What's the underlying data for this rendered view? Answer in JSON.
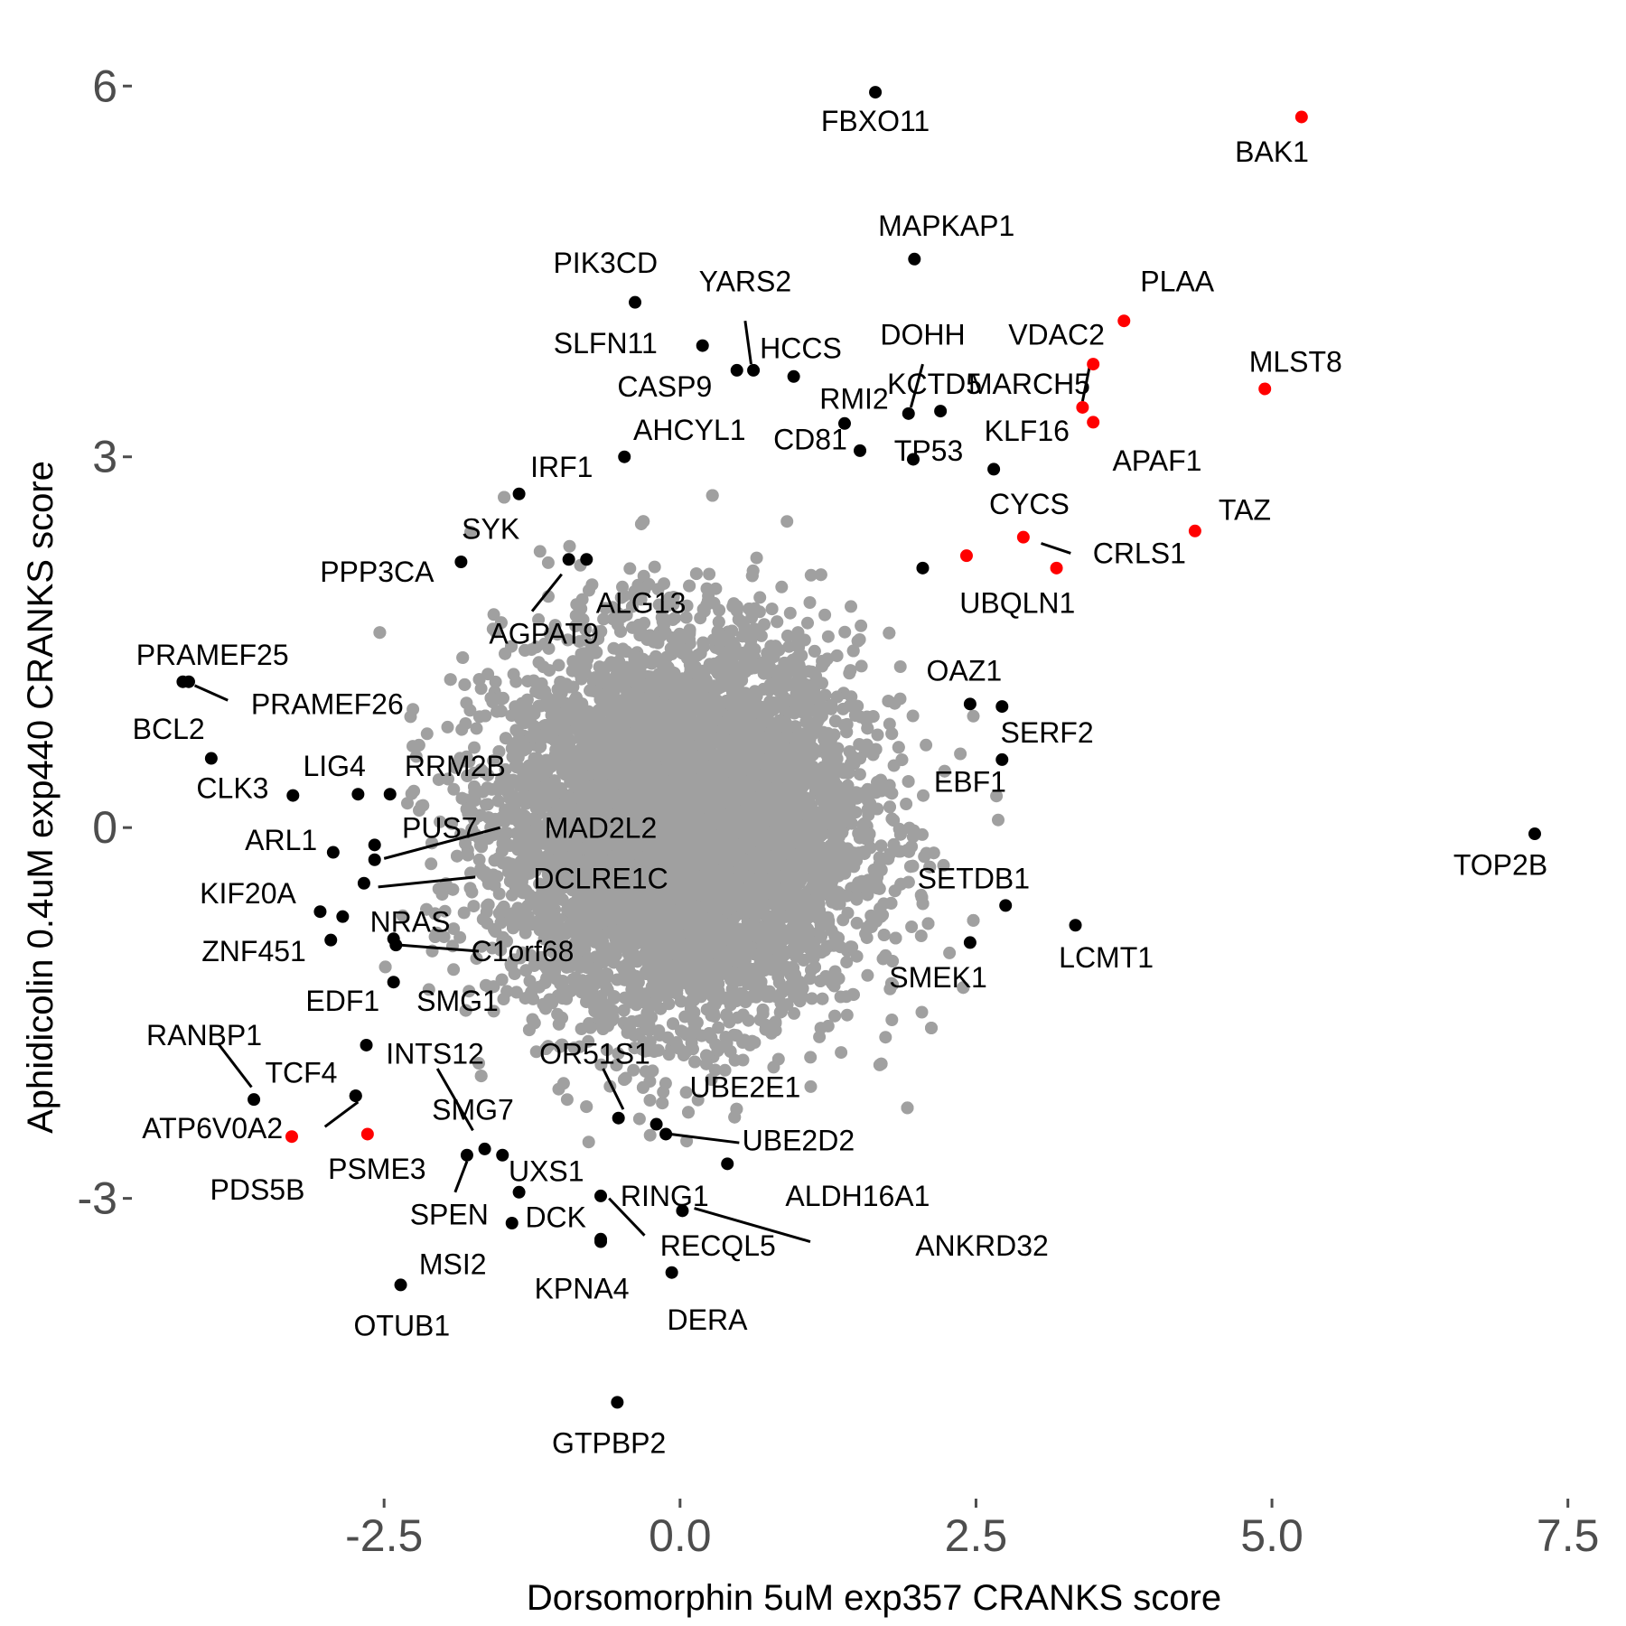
{
  "chart_data": {
    "type": "scatter",
    "title": "",
    "xlabel": "Dorsomorphin 5uM exp357 CRANKS score",
    "ylabel": "Aphidicolin 0.4uM exp440 CRANKS score",
    "xlim": [
      -4.6,
      7.8
    ],
    "ylim": [
      -5.4,
      6.55
    ],
    "xticks": [
      -2.5,
      0.0,
      2.5,
      5.0,
      7.5
    ],
    "xtick_labels": [
      "-2.5",
      "0.0",
      "2.5",
      "5.0",
      "7.5"
    ],
    "yticks": [
      -3,
      0,
      3,
      6
    ],
    "ytick_labels": [
      "-3",
      "0",
      "3",
      "6"
    ],
    "grid": false,
    "colors": {
      "background": "#ffffff",
      "labeled": "#000000",
      "highlighted": "#ff0000",
      "background_points": "#a0a0a0",
      "tick": "#4d4d4d"
    },
    "background_cloud": {
      "color": "#a0a0a0",
      "center": [
        0.0,
        0.0
      ],
      "sd": [
        0.75,
        0.75
      ],
      "count": 9000
    },
    "series": [
      {
        "color": "#000000",
        "points": [
          {
            "label": "FBXO11",
            "x": 1.65,
            "y": 5.95
          },
          {
            "label": "MAPKAP1",
            "x": 1.98,
            "y": 4.6
          },
          {
            "label": "PIK3CD",
            "x": -0.38,
            "y": 4.25
          },
          {
            "label": "SLFN11",
            "x": 0.19,
            "y": 3.9
          },
          {
            "label": "YARS2",
            "x": 0.62,
            "y": 3.7
          },
          {
            "label": "HCCS",
            "x": 0.96,
            "y": 3.65
          },
          {
            "label": "CASP9",
            "x": 0.48,
            "y": 3.7
          },
          {
            "label": "DOHH",
            "x": 1.93,
            "y": 3.35
          },
          {
            "label": "KCTD5",
            "x": 2.2,
            "y": 3.37
          },
          {
            "label": "RMI2",
            "x": 1.39,
            "y": 3.27
          },
          {
            "label": "CD81",
            "x": 1.52,
            "y": 3.05
          },
          {
            "label": "TP53",
            "x": 1.97,
            "y": 2.98
          },
          {
            "label": "AHCYL1",
            "x": -0.47,
            "y": 3.0
          },
          {
            "label": "KLF16",
            "x": 2.65,
            "y": 2.9
          },
          {
            "label": "IRF1",
            "x": -1.36,
            "y": 2.7
          },
          {
            "label": "SYK",
            "x": -1.85,
            "y": 2.15
          },
          {
            "label": "ALG13",
            "x": -0.94,
            "y": 2.17
          },
          {
            "label": "AGPAT9",
            "x": -0.79,
            "y": 2.17
          },
          {
            "label": "UBQLN1",
            "x": 2.05,
            "y": 2.1
          },
          {
            "label": "PRAMEF25",
            "x": -4.2,
            "y": 1.18
          },
          {
            "label": "PRAMEF26",
            "x": -4.15,
            "y": 1.18
          },
          {
            "label": "OAZ1",
            "x": 2.45,
            "y": 1.0
          },
          {
            "label": "SERF2",
            "x": 2.72,
            "y": 0.98
          },
          {
            "label": "BCL2",
            "x": -3.96,
            "y": 0.56
          },
          {
            "label": "EBF1",
            "x": 2.72,
            "y": 0.55
          },
          {
            "label": "CLK3",
            "x": -3.27,
            "y": 0.26
          },
          {
            "label": "LIG4",
            "x": -2.72,
            "y": 0.27
          },
          {
            "label": "RRM2B",
            "x": -2.45,
            "y": 0.27
          },
          {
            "label": "TOP2B",
            "x": 7.22,
            "y": -0.05
          },
          {
            "label": "ARL1",
            "x": -2.93,
            "y": -0.2
          },
          {
            "label": "PUS7",
            "x": -2.58,
            "y": -0.14
          },
          {
            "label": "MAD2L2",
            "x": -2.58,
            "y": -0.26
          },
          {
            "label": "DCLRE1C",
            "x": -2.67,
            "y": -0.45
          },
          {
            "label": "KIF20A",
            "x": -3.04,
            "y": -0.68
          },
          {
            "label": "NRAS",
            "x": -2.85,
            "y": -0.72
          },
          {
            "label": "SETDB1",
            "x": 2.75,
            "y": -0.63
          },
          {
            "label": "LCMT1",
            "x": 3.34,
            "y": -0.79
          },
          {
            "label": "ZNF451",
            "x": -2.95,
            "y": -0.91
          },
          {
            "label": "C1orf68",
            "x": -2.4,
            "y": -0.95
          },
          {
            "label": "SMEK1",
            "x": 2.45,
            "y": -0.93
          },
          {
            "label": "EDF1",
            "x": -2.42,
            "y": -1.25
          },
          {
            "label": "SMG1",
            "x": -2.42,
            "y": -0.9
          },
          {
            "label": "RANBP1",
            "x": -3.6,
            "y": -2.2
          },
          {
            "label": "TCF4",
            "x": -2.65,
            "y": -1.76
          },
          {
            "label": "INTS12",
            "x": -2.74,
            "y": -2.17
          },
          {
            "label": "ATP6V0A2",
            "x": -2.74,
            "y": -2.17
          },
          {
            "label": "SMG7",
            "x": -1.65,
            "y": -2.6
          },
          {
            "label": "SPEN",
            "x": -1.8,
            "y": -2.65
          },
          {
            "label": "OR51S1",
            "x": -0.52,
            "y": -2.35
          },
          {
            "label": "UBE2E1",
            "x": -0.2,
            "y": -2.4
          },
          {
            "label": "UBE2D2",
            "x": -0.12,
            "y": -2.48
          },
          {
            "label": "UXS1",
            "x": -1.5,
            "y": -2.65
          },
          {
            "label": "ALDH16A1",
            "x": 0.4,
            "y": -2.72
          },
          {
            "label": "DCK",
            "x": -1.36,
            "y": -2.95
          },
          {
            "label": "RING1",
            "x": -0.67,
            "y": -2.98
          },
          {
            "label": "ANKRD32",
            "x": 0.02,
            "y": -3.1
          },
          {
            "label": "RECQL5",
            "x": -0.67,
            "y": -3.35
          },
          {
            "label": "MSI2",
            "x": -1.42,
            "y": -3.2
          },
          {
            "label": "OTUB1",
            "x": -2.36,
            "y": -3.7
          },
          {
            "label": "KPNA4",
            "x": -0.67,
            "y": -3.33
          },
          {
            "label": "DERA",
            "x": -0.07,
            "y": -3.6
          },
          {
            "label": "GTPBP2",
            "x": -0.53,
            "y": -4.65
          }
        ]
      },
      {
        "color": "#ff0000",
        "points": [
          {
            "label": "BAK1",
            "x": 5.25,
            "y": 5.75
          },
          {
            "label": "PLAA",
            "x": 3.75,
            "y": 4.1
          },
          {
            "label": "VDAC2",
            "x": 3.49,
            "y": 3.75
          },
          {
            "label": "MLST8",
            "x": 4.94,
            "y": 3.55
          },
          {
            "label": "MARCH5",
            "x": 3.4,
            "y": 3.4
          },
          {
            "label": "APAF1",
            "x": 3.49,
            "y": 3.28
          },
          {
            "label": "TAZ",
            "x": 4.35,
            "y": 2.4
          },
          {
            "label": "CYCS",
            "x": 2.9,
            "y": 2.35
          },
          {
            "label": "CRLS1",
            "x": 3.18,
            "y": 2.1
          },
          {
            "label": "",
            "x": 2.42,
            "y": 2.2
          },
          {
            "label": "PDS5B",
            "x": -3.28,
            "y": -2.5
          },
          {
            "label": "PSME3",
            "x": -2.64,
            "y": -2.48
          }
        ]
      }
    ],
    "labels": [
      {
        "text": "FBXO11",
        "x": 1.65,
        "y": 5.7
      },
      {
        "text": "BAK1",
        "x": 5.0,
        "y": 5.45
      },
      {
        "text": "MAPKAP1",
        "x": 2.25,
        "y": 4.85
      },
      {
        "text": "PLAA",
        "x": 4.2,
        "y": 4.4
      },
      {
        "text": "PIK3CD",
        "x": -0.63,
        "y": 4.55
      },
      {
        "text": "YARS2",
        "x": 0.55,
        "y": 4.4
      },
      {
        "text": "SLFN11",
        "x": -0.63,
        "y": 3.9
      },
      {
        "text": "VDAC2",
        "x": 3.18,
        "y": 3.97
      },
      {
        "text": "DOHH",
        "x": 2.05,
        "y": 3.97
      },
      {
        "text": "HCCS",
        "x": 1.02,
        "y": 3.86
      },
      {
        "text": "MLST8",
        "x": 5.2,
        "y": 3.75
      },
      {
        "text": "CASP9",
        "x": -0.13,
        "y": 3.55
      },
      {
        "text": "KCTD5",
        "x": 2.15,
        "y": 3.57
      },
      {
        "text": "MARCH5",
        "x": 2.95,
        "y": 3.57
      },
      {
        "text": "RMI2",
        "x": 1.47,
        "y": 3.45
      },
      {
        "text": "AHCYL1",
        "x": 0.08,
        "y": 3.2
      },
      {
        "text": "KLF16",
        "x": 2.93,
        "y": 3.19
      },
      {
        "text": "CD81",
        "x": 1.1,
        "y": 3.12
      },
      {
        "text": "TP53",
        "x": 2.1,
        "y": 3.03
      },
      {
        "text": "APAF1",
        "x": 4.03,
        "y": 2.95
      },
      {
        "text": "IRF1",
        "x": -1.0,
        "y": 2.9
      },
      {
        "text": "CYCS",
        "x": 2.95,
        "y": 2.6
      },
      {
        "text": "TAZ",
        "x": 4.77,
        "y": 2.55
      },
      {
        "text": "SYK",
        "x": -1.6,
        "y": 2.4
      },
      {
        "text": "CRLS1",
        "x": 3.88,
        "y": 2.2
      },
      {
        "text": "PPP3CA",
        "x": -2.56,
        "y": 2.05
      },
      {
        "text": "UBQLN1",
        "x": 2.85,
        "y": 1.8
      },
      {
        "text": "ALG13",
        "x": -0.33,
        "y": 1.8
      },
      {
        "text": "AGPAT9",
        "x": -1.15,
        "y": 1.55
      },
      {
        "text": "PRAMEF25",
        "x": -3.95,
        "y": 1.38
      },
      {
        "text": "PRAMEF26",
        "x": -2.98,
        "y": 0.98
      },
      {
        "text": "OAZ1",
        "x": 2.4,
        "y": 1.25
      },
      {
        "text": "BCL2",
        "x": -4.32,
        "y": 0.78
      },
      {
        "text": "SERF2",
        "x": 3.1,
        "y": 0.75
      },
      {
        "text": "LIG4",
        "x": -2.92,
        "y": 0.48
      },
      {
        "text": "RRM2B",
        "x": -1.9,
        "y": 0.48
      },
      {
        "text": "EBF1",
        "x": 2.45,
        "y": 0.35
      },
      {
        "text": "CLK3",
        "x": -3.78,
        "y": 0.3
      },
      {
        "text": "PUS7",
        "x": -2.03,
        "y": -0.02
      },
      {
        "text": "MAD2L2",
        "x": -0.67,
        "y": -0.02
      },
      {
        "text": "ARL1",
        "x": -3.37,
        "y": -0.12
      },
      {
        "text": "TOP2B",
        "x": 6.93,
        "y": -0.32
      },
      {
        "text": "DCLRE1C",
        "x": -0.67,
        "y": -0.43
      },
      {
        "text": "SETDB1",
        "x": 2.48,
        "y": -0.43
      },
      {
        "text": "KIF20A",
        "x": -3.65,
        "y": -0.55
      },
      {
        "text": "NRAS",
        "x": -2.28,
        "y": -0.78
      },
      {
        "text": "ZNF451",
        "x": -3.6,
        "y": -1.02
      },
      {
        "text": "C1orf68",
        "x": -1.33,
        "y": -1.02
      },
      {
        "text": "LCMT1",
        "x": 3.6,
        "y": -1.07
      },
      {
        "text": "SMEK1",
        "x": 2.18,
        "y": -1.23
      },
      {
        "text": "EDF1",
        "x": -2.85,
        "y": -1.42
      },
      {
        "text": "SMG1",
        "x": -1.88,
        "y": -1.42
      },
      {
        "text": "RANBP1",
        "x": -4.02,
        "y": -1.7
      },
      {
        "text": "INTS12",
        "x": -2.07,
        "y": -1.85
      },
      {
        "text": "OR51S1",
        "x": -0.72,
        "y": -1.85
      },
      {
        "text": "TCF4",
        "x": -3.2,
        "y": -2.0
      },
      {
        "text": "UBE2E1",
        "x": 0.55,
        "y": -2.12
      },
      {
        "text": "SMG7",
        "x": -1.75,
        "y": -2.3
      },
      {
        "text": "ATP6V0A2",
        "x": -3.95,
        "y": -2.45
      },
      {
        "text": "UBE2D2",
        "x": 1.0,
        "y": -2.55
      },
      {
        "text": "PSME3",
        "x": -2.56,
        "y": -2.78
      },
      {
        "text": "UXS1",
        "x": -1.13,
        "y": -2.8
      },
      {
        "text": "PDS5B",
        "x": -3.57,
        "y": -2.95
      },
      {
        "text": "ALDH16A1",
        "x": 1.5,
        "y": -3.0
      },
      {
        "text": "RING1",
        "x": -0.13,
        "y": -3.0
      },
      {
        "text": "SPEN",
        "x": -1.95,
        "y": -3.15
      },
      {
        "text": "DCK",
        "x": -1.05,
        "y": -3.17
      },
      {
        "text": "ANKRD32",
        "x": 2.55,
        "y": -3.4
      },
      {
        "text": "RECQL5",
        "x": 0.32,
        "y": -3.4
      },
      {
        "text": "MSI2",
        "x": -1.92,
        "y": -3.55
      },
      {
        "text": "KPNA4",
        "x": -0.83,
        "y": -3.75
      },
      {
        "text": "OTUB1",
        "x": -2.35,
        "y": -4.05
      },
      {
        "text": "DERA",
        "x": 0.23,
        "y": -4.0
      },
      {
        "text": "GTPBP2",
        "x": -0.6,
        "y": -5.0
      }
    ],
    "segments": [
      {
        "x1": 0.55,
        "y1": 4.1,
        "x2": 0.6,
        "y2": 3.75
      },
      {
        "x1": 2.05,
        "y1": 3.75,
        "x2": 1.95,
        "y2": 3.4
      },
      {
        "x1": 3.47,
        "y1": 3.78,
        "x2": 3.4,
        "y2": 3.45
      },
      {
        "x1": 3.05,
        "y1": 2.3,
        "x2": 3.3,
        "y2": 2.22
      },
      {
        "x1": -1.25,
        "y1": 1.75,
        "x2": -1.0,
        "y2": 2.05
      },
      {
        "x1": -4.1,
        "y1": 1.15,
        "x2": -3.82,
        "y2": 1.03
      },
      {
        "x1": -2.5,
        "y1": -0.25,
        "x2": -1.52,
        "y2": 0.0
      },
      {
        "x1": -2.55,
        "y1": -0.48,
        "x2": -1.73,
        "y2": -0.4
      },
      {
        "x1": -2.37,
        "y1": -0.95,
        "x2": -1.7,
        "y2": -1.0
      },
      {
        "x1": -3.9,
        "y1": -1.75,
        "x2": -3.62,
        "y2": -2.1
      },
      {
        "x1": -3.0,
        "y1": -2.42,
        "x2": -2.72,
        "y2": -2.22
      },
      {
        "x1": -2.05,
        "y1": -1.95,
        "x2": -1.75,
        "y2": -2.45
      },
      {
        "x1": -0.65,
        "y1": -1.95,
        "x2": -0.48,
        "y2": -2.28
      },
      {
        "x1": -0.08,
        "y1": -2.48,
        "x2": 0.5,
        "y2": -2.55
      },
      {
        "x1": -1.9,
        "y1": -2.95,
        "x2": -1.8,
        "y2": -2.7
      },
      {
        "x1": -0.6,
        "y1": -3.0,
        "x2": -0.3,
        "y2": -3.3
      },
      {
        "x1": 0.12,
        "y1": -3.08,
        "x2": 1.1,
        "y2": -3.35
      }
    ]
  }
}
